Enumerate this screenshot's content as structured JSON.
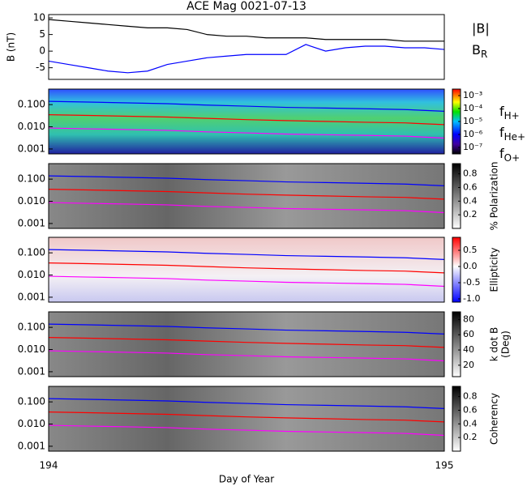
{
  "chart_data": [
    {
      "type": "line",
      "title": "ACE Mag 0021-07-13",
      "y_label": "B (nT)",
      "xlim": [
        194,
        195
      ],
      "ylim": [
        -8.5,
        11
      ],
      "yticks": [
        -5,
        0,
        5,
        10
      ],
      "legend": true,
      "x": [
        194,
        194.05,
        194.1,
        194.15,
        194.2,
        194.25,
        194.3,
        194.35,
        194.4,
        194.45,
        194.5,
        194.55,
        194.6,
        194.65,
        194.7,
        194.75,
        194.8,
        194.85,
        194.9,
        194.95,
        195
      ],
      "series": [
        {
          "name": "|B|",
          "color": "#000000",
          "values": [
            9.5,
            9,
            8.5,
            8,
            7.5,
            7,
            7,
            6.5,
            5,
            4.5,
            4.5,
            4,
            4,
            4,
            3.5,
            3.5,
            3.5,
            3.5,
            3,
            3,
            3
          ]
        },
        {
          "name": "BR",
          "color": "#0000ff",
          "values": [
            -3,
            -4,
            -5,
            -6,
            -6.5,
            -6,
            -4,
            -3,
            -2,
            -1.5,
            -1,
            -1,
            -1,
            2,
            0,
            1,
            1.5,
            1.5,
            1,
            1,
            0.5
          ]
        }
      ]
    },
    {
      "type": "spectrogram",
      "log_y": true,
      "xlim": [
        194,
        195
      ],
      "ylim": [
        0.0006,
        0.5
      ],
      "yticks": [
        0.001,
        {
          "value": 0.01,
          "label": "0.010"
        },
        {
          "value": 0.1,
          "label": "0.100"
        }
      ],
      "clim": [
        -7.5,
        -2.5
      ],
      "cticks": [
        {
          "value": -3,
          "label": "10⁻³"
        },
        {
          "value": -4,
          "label": "10⁻⁴"
        },
        {
          "value": -5,
          "label": "10⁻⁵"
        },
        {
          "value": -6,
          "label": "10⁻⁶"
        },
        {
          "value": -7,
          "label": "10⁻⁷"
        }
      ],
      "legend": true,
      "x": [
        194,
        194.1,
        194.2,
        194.3,
        194.4,
        194.5,
        194.6,
        194.7,
        194.8,
        194.9,
        195
      ],
      "series": [
        {
          "name": "fH+",
          "color": "#0000ff",
          "values": [
            0.14,
            0.13,
            0.12,
            0.11,
            0.095,
            0.085,
            0.075,
            0.07,
            0.065,
            0.06,
            0.05
          ]
        },
        {
          "name": "fHe+",
          "color": "#ff0000",
          "values": [
            0.035,
            0.0325,
            0.03,
            0.0275,
            0.024,
            0.021,
            0.019,
            0.0175,
            0.016,
            0.015,
            0.0125
          ]
        },
        {
          "name": "fO+",
          "color": "#ff00ff",
          "values": [
            0.0088,
            0.0081,
            0.0075,
            0.0069,
            0.0059,
            0.0053,
            0.0047,
            0.0044,
            0.0041,
            0.0038,
            0.0031
          ]
        }
      ]
    },
    {
      "type": "spectrogram",
      "log_y": true,
      "xlim": [
        194,
        195
      ],
      "ylim": [
        0.0006,
        0.5
      ],
      "yticks": [
        0.001,
        {
          "value": 0.01,
          "label": "0.010"
        },
        {
          "value": 0.1,
          "label": "0.100"
        }
      ],
      "clim": [
        0,
        0.95
      ],
      "cticks": [
        0.2,
        0.4,
        0.6,
        0.8
      ],
      "colorbar_label": "% Polarization",
      "x": [
        194,
        194.1,
        194.2,
        194.3,
        194.4,
        194.5,
        194.6,
        194.7,
        194.8,
        194.9,
        195
      ],
      "series": [
        {
          "name": "fH+",
          "color": "#0000ff",
          "values": [
            0.14,
            0.13,
            0.12,
            0.11,
            0.095,
            0.085,
            0.075,
            0.07,
            0.065,
            0.06,
            0.05
          ]
        },
        {
          "name": "fHe+",
          "color": "#ff0000",
          "values": [
            0.035,
            0.0325,
            0.03,
            0.0275,
            0.024,
            0.021,
            0.019,
            0.0175,
            0.016,
            0.015,
            0.0125
          ]
        },
        {
          "name": "fO+",
          "color": "#ff00ff",
          "values": [
            0.0088,
            0.0081,
            0.0075,
            0.0069,
            0.0059,
            0.0053,
            0.0047,
            0.0044,
            0.0041,
            0.0038,
            0.0031
          ]
        }
      ]
    },
    {
      "type": "spectrogram",
      "log_y": true,
      "xlim": [
        194,
        195
      ],
      "ylim": [
        0.0006,
        0.5
      ],
      "yticks": [
        0.001,
        {
          "value": 0.01,
          "label": "0.010"
        },
        {
          "value": 0.1,
          "label": "0.100"
        }
      ],
      "clim": [
        -1.1,
        0.9
      ],
      "cticks": [
        0.5,
        {
          "value": 0,
          "label": "0.0"
        },
        -0.5,
        {
          "value": -1,
          "label": "-1.0"
        }
      ],
      "colorbar_label": "Ellipticity",
      "x": [
        194,
        194.1,
        194.2,
        194.3,
        194.4,
        194.5,
        194.6,
        194.7,
        194.8,
        194.9,
        195
      ],
      "series": [
        {
          "name": "fH+",
          "color": "#0000ff",
          "values": [
            0.14,
            0.13,
            0.12,
            0.11,
            0.095,
            0.085,
            0.075,
            0.07,
            0.065,
            0.06,
            0.05
          ]
        },
        {
          "name": "fHe+",
          "color": "#ff0000",
          "values": [
            0.035,
            0.0325,
            0.03,
            0.0275,
            0.024,
            0.021,
            0.019,
            0.0175,
            0.016,
            0.015,
            0.0125
          ]
        },
        {
          "name": "fO+",
          "color": "#ff00ff",
          "values": [
            0.0088,
            0.0081,
            0.0075,
            0.0069,
            0.0059,
            0.0053,
            0.0047,
            0.0044,
            0.0041,
            0.0038,
            0.0031
          ]
        }
      ]
    },
    {
      "type": "spectrogram",
      "log_y": true,
      "xlim": [
        194,
        195
      ],
      "ylim": [
        0.0006,
        0.5
      ],
      "yticks": [
        0.001,
        {
          "value": 0.01,
          "label": "0.010"
        },
        {
          "value": 0.1,
          "label": "0.100"
        }
      ],
      "clim": [
        5,
        90
      ],
      "cticks": [
        20,
        40,
        60,
        80
      ],
      "colorbar_label": "k dot B",
      "colorbar_unit": "(Deg)",
      "x": [
        194,
        194.1,
        194.2,
        194.3,
        194.4,
        194.5,
        194.6,
        194.7,
        194.8,
        194.9,
        195
      ],
      "series": [
        {
          "name": "fH+",
          "color": "#0000ff",
          "values": [
            0.14,
            0.13,
            0.12,
            0.11,
            0.095,
            0.085,
            0.075,
            0.07,
            0.065,
            0.06,
            0.05
          ]
        },
        {
          "name": "fHe+",
          "color": "#ff0000",
          "values": [
            0.035,
            0.0325,
            0.03,
            0.0275,
            0.024,
            0.021,
            0.019,
            0.0175,
            0.016,
            0.015,
            0.0125
          ]
        },
        {
          "name": "fO+",
          "color": "#ff00ff",
          "values": [
            0.0088,
            0.0081,
            0.0075,
            0.0069,
            0.0059,
            0.0053,
            0.0047,
            0.0044,
            0.0041,
            0.0038,
            0.0031
          ]
        }
      ]
    },
    {
      "type": "spectrogram",
      "log_y": true,
      "xlim": [
        194,
        195
      ],
      "ylim": [
        0.0006,
        0.5
      ],
      "yticks": [
        0.001,
        {
          "value": 0.01,
          "label": "0.010"
        },
        {
          "value": 0.1,
          "label": "0.100"
        }
      ],
      "clim": [
        0,
        0.95
      ],
      "cticks": [
        0.2,
        0.4,
        0.6,
        0.8
      ],
      "colorbar_label": "Coherency",
      "x_label": "Day of Year",
      "xticks": [
        194,
        195
      ],
      "x": [
        194,
        194.1,
        194.2,
        194.3,
        194.4,
        194.5,
        194.6,
        194.7,
        194.8,
        194.9,
        195
      ],
      "series": [
        {
          "name": "fH+",
          "color": "#0000ff",
          "values": [
            0.14,
            0.13,
            0.12,
            0.11,
            0.095,
            0.085,
            0.075,
            0.07,
            0.065,
            0.06,
            0.05
          ]
        },
        {
          "name": "fHe+",
          "color": "#ff0000",
          "values": [
            0.035,
            0.0325,
            0.03,
            0.0275,
            0.024,
            0.021,
            0.019,
            0.0175,
            0.016,
            0.015,
            0.0125
          ]
        },
        {
          "name": "fO+",
          "color": "#ff00ff",
          "values": [
            0.0088,
            0.0081,
            0.0075,
            0.0069,
            0.0059,
            0.0053,
            0.0047,
            0.0044,
            0.0041,
            0.0038,
            0.0031
          ]
        }
      ]
    }
  ]
}
